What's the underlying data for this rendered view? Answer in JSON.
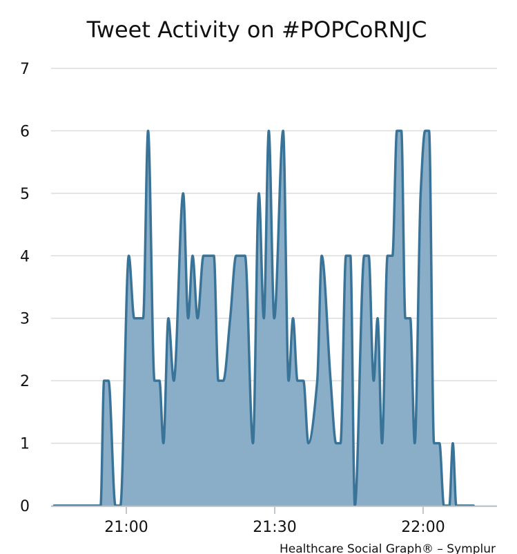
{
  "chart_data": {
    "type": "area",
    "title": "Tweet Activity on #POPCoRNJC",
    "xlabel": "",
    "ylabel": "",
    "ylim": [
      0,
      7
    ],
    "y_ticks": [
      "0",
      "1",
      "2",
      "3",
      "4",
      "5",
      "6",
      "7"
    ],
    "x_unit": "minutes",
    "x_range": [
      "20:49",
      "21:15 (+1h)"
    ],
    "x_ticks": [
      {
        "label": "21:00",
        "minute": 0
      },
      {
        "label": "21:30",
        "minute": 30
      },
      {
        "label": "22:00",
        "minute": 60
      }
    ],
    "grid": true,
    "legend": "none",
    "colors": {
      "line": "#3a7398",
      "fill": "#8aaec7"
    },
    "credit": "Healthcare Social Graph® – Symplur",
    "series": [
      {
        "values": [
          {
            "t": -14.6,
            "v": 0
          },
          {
            "t": -5.2,
            "v": 0
          },
          {
            "t": -4.5,
            "v": 2
          },
          {
            "t": -3.6,
            "v": 2
          },
          {
            "t": -2.2,
            "v": 0
          },
          {
            "t": -1.2,
            "v": 0
          },
          {
            "t": 0.5,
            "v": 4
          },
          {
            "t": 1.6,
            "v": 3
          },
          {
            "t": 3.4,
            "v": 3
          },
          {
            "t": 4.4,
            "v": 6
          },
          {
            "t": 5.7,
            "v": 2
          },
          {
            "t": 6.7,
            "v": 2
          },
          {
            "t": 7.5,
            "v": 1
          },
          {
            "t": 8.5,
            "v": 3
          },
          {
            "t": 9.6,
            "v": 2
          },
          {
            "t": 11.5,
            "v": 5
          },
          {
            "t": 12.5,
            "v": 3
          },
          {
            "t": 13.4,
            "v": 4
          },
          {
            "t": 14.4,
            "v": 3
          },
          {
            "t": 15.6,
            "v": 4
          },
          {
            "t": 17.7,
            "v": 4
          },
          {
            "t": 18.6,
            "v": 2
          },
          {
            "t": 19.6,
            "v": 2
          },
          {
            "t": 21.0,
            "v": 3
          },
          {
            "t": 22.2,
            "v": 4
          },
          {
            "t": 24.0,
            "v": 4
          },
          {
            "t": 25.6,
            "v": 1
          },
          {
            "t": 26.8,
            "v": 5
          },
          {
            "t": 27.8,
            "v": 3
          },
          {
            "t": 28.8,
            "v": 6
          },
          {
            "t": 29.9,
            "v": 3
          },
          {
            "t": 31.7,
            "v": 6
          },
          {
            "t": 32.8,
            "v": 2
          },
          {
            "t": 33.7,
            "v": 3
          },
          {
            "t": 34.6,
            "v": 2
          },
          {
            "t": 35.8,
            "v": 2
          },
          {
            "t": 36.8,
            "v": 1
          },
          {
            "t": 38.6,
            "v": 2
          },
          {
            "t": 39.5,
            "v": 4
          },
          {
            "t": 41.3,
            "v": 2
          },
          {
            "t": 42.4,
            "v": 1
          },
          {
            "t": 43.3,
            "v": 1
          },
          {
            "t": 44.4,
            "v": 4
          },
          {
            "t": 45.3,
            "v": 4
          },
          {
            "t": 46.2,
            "v": 0
          },
          {
            "t": 48.1,
            "v": 4
          },
          {
            "t": 49.0,
            "v": 4
          },
          {
            "t": 50.0,
            "v": 2
          },
          {
            "t": 50.8,
            "v": 3
          },
          {
            "t": 51.7,
            "v": 1
          },
          {
            "t": 52.8,
            "v": 4
          },
          {
            "t": 53.8,
            "v": 4
          },
          {
            "t": 54.7,
            "v": 6
          },
          {
            "t": 55.6,
            "v": 6
          },
          {
            "t": 56.4,
            "v": 3
          },
          {
            "t": 57.4,
            "v": 3
          },
          {
            "t": 58.3,
            "v": 1
          },
          {
            "t": 59.5,
            "v": 5
          },
          {
            "t": 60.4,
            "v": 6
          },
          {
            "t": 61.2,
            "v": 6
          },
          {
            "t": 62.2,
            "v": 1
          },
          {
            "t": 63.3,
            "v": 1
          },
          {
            "t": 64.2,
            "v": 0
          },
          {
            "t": 65.3,
            "v": 0
          },
          {
            "t": 66.0,
            "v": 1
          },
          {
            "t": 66.7,
            "v": 0
          },
          {
            "t": 70.2,
            "v": 0
          }
        ]
      }
    ]
  }
}
